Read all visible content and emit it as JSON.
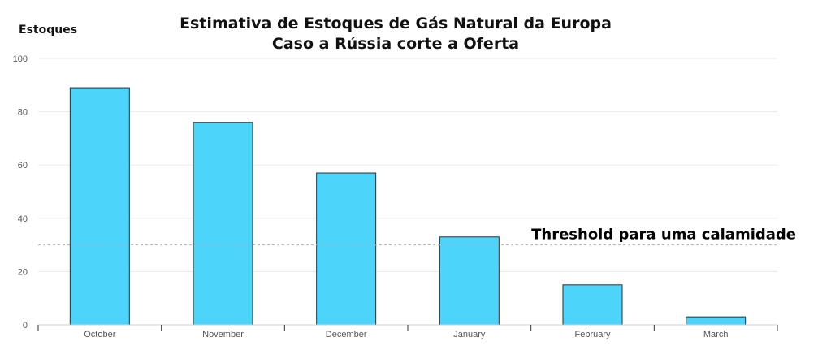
{
  "chart_data": {
    "type": "bar",
    "title_lines": [
      "Estimativa de Estoques de Gás Natural da Europa",
      "Caso a Rússia corte a Oferta"
    ],
    "xlabel": "",
    "ylabel": "Estoques",
    "categories": [
      "October",
      "November",
      "December",
      "January",
      "February",
      "March"
    ],
    "values": [
      89,
      76,
      57,
      33,
      15,
      3
    ],
    "ylim": [
      0,
      100
    ],
    "yticks": [
      0,
      20,
      40,
      60,
      80,
      100
    ],
    "ytick_labels": [
      "0",
      "20",
      "40",
      "60",
      "80",
      "100"
    ],
    "grid": true,
    "legend": null,
    "annotations": [
      {
        "type": "hline",
        "y": 30,
        "style": "dashed",
        "label": "Threshold para uma calamidade"
      }
    ],
    "colors": {
      "bar_fill": "#4dd4fb",
      "bar_stroke": "#2e2e2e",
      "grid": "#eaeaea",
      "threshold_line": "#b0b0b0"
    }
  }
}
